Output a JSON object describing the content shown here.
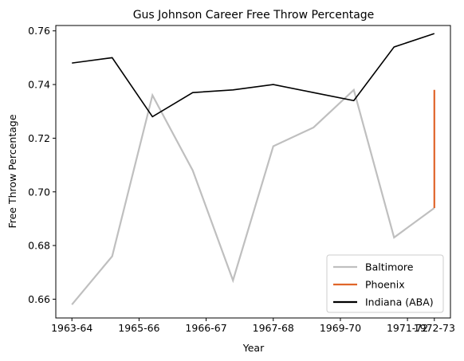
{
  "chart_data": {
    "type": "line",
    "title": "Gus Johnson  Career Free Throw Percentage",
    "xlabel": "Year",
    "ylabel": "Free Throw Percentage",
    "ylim": [
      0.653,
      0.762
    ],
    "yticks": [
      0.66,
      0.68,
      0.7,
      0.72,
      0.74,
      0.76
    ],
    "ytick_labels": [
      "0.66",
      "0.68",
      "0.70",
      "0.72",
      "0.74",
      "0.76"
    ],
    "xlim": [
      -0.4,
      9.4
    ],
    "xticks": [
      0,
      1.667,
      2.778,
      3.889,
      5.0,
      6.111,
      7.222,
      8.333,
      9.0
    ],
    "xtick_labels": [
      "1963-64",
      "1965-66",
      "1966-67",
      "1967-68",
      "1969-70",
      "1971-72",
      "1972-73"
    ],
    "xtick_positions": [
      0,
      1.667,
      3.333,
      5.0,
      6.667,
      8.333,
      9.0
    ],
    "legend_position": "lower-right",
    "grid": false,
    "series": [
      {
        "name": "Baltimore",
        "color": "#bfbfbf",
        "x": [
          0,
          1,
          2,
          3,
          4,
          5,
          6,
          7,
          8,
          9
        ],
        "values": [
          0.658,
          0.676,
          0.736,
          0.708,
          0.667,
          0.717,
          0.724,
          0.738,
          0.683,
          0.694
        ]
      },
      {
        "name": "Phoenix",
        "color": "#e0652a",
        "x": [
          9,
          9
        ],
        "values": [
          0.694,
          0.738
        ]
      },
      {
        "name": "Indiana (ABA)",
        "color": "#000000",
        "x": [
          0,
          1,
          2,
          3,
          4,
          5,
          6,
          7,
          8,
          9
        ],
        "values": [
          0.748,
          0.75,
          0.728,
          0.737,
          0.738,
          0.74,
          0.737,
          0.734,
          0.754,
          0.759
        ]
      }
    ]
  }
}
